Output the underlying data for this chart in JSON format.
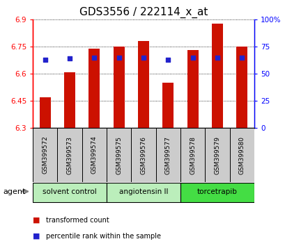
{
  "title": "GDS3556 / 222114_x_at",
  "samples": [
    "GSM399572",
    "GSM399573",
    "GSM399574",
    "GSM399575",
    "GSM399576",
    "GSM399577",
    "GSM399578",
    "GSM399579",
    "GSM399580"
  ],
  "red_values": [
    6.47,
    6.61,
    6.74,
    6.75,
    6.78,
    6.55,
    6.73,
    6.88,
    6.75
  ],
  "blue_percentiles": [
    63,
    64,
    65,
    65,
    65,
    63,
    65,
    65,
    65
  ],
  "y_min": 6.3,
  "y_max": 6.9,
  "y_ticks": [
    6.3,
    6.45,
    6.6,
    6.75,
    6.9
  ],
  "y_tick_labels": [
    "6.3",
    "6.45",
    "6.6",
    "6.75",
    "6.9"
  ],
  "right_y_ticks": [
    0,
    25,
    50,
    75,
    100
  ],
  "right_y_tick_labels": [
    "0",
    "25",
    "50",
    "75",
    "100%"
  ],
  "bar_color": "#cc1100",
  "blue_color": "#2222cc",
  "groups": [
    {
      "label": "solvent control",
      "indices": [
        0,
        1,
        2
      ],
      "color": "#bbeebb"
    },
    {
      "label": "angiotensin II",
      "indices": [
        3,
        4,
        5
      ],
      "color": "#bbeebb"
    },
    {
      "label": "torcetrapib",
      "indices": [
        6,
        7,
        8
      ],
      "color": "#44dd44"
    }
  ],
  "sample_box_color": "#cccccc",
  "agent_label": "agent",
  "legend_items": [
    {
      "label": "transformed count",
      "color": "#cc1100"
    },
    {
      "label": "percentile rank within the sample",
      "color": "#2222cc"
    }
  ],
  "bg_color": "#ffffff",
  "plot_bg": "#ffffff",
  "title_fontsize": 11,
  "tick_fontsize": 7.5
}
